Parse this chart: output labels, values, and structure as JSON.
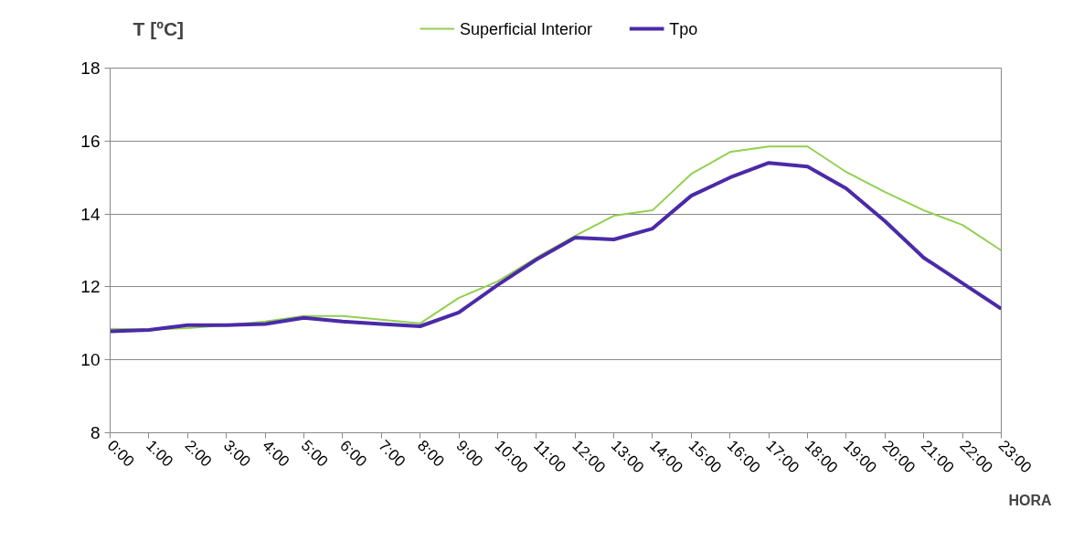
{
  "chart_data": {
    "type": "line",
    "title": "T [ºC]",
    "xlabel": "HORA",
    "x": [
      0,
      1,
      2,
      3,
      4,
      5,
      6,
      7,
      8,
      9,
      10,
      11,
      12,
      13,
      14,
      15,
      16,
      17,
      18,
      19,
      20,
      21,
      22,
      23
    ],
    "series": [
      {
        "name": "Superficial Interior",
        "color": "#92d050",
        "values": [
          10.85,
          10.83,
          10.87,
          10.95,
          11.05,
          11.2,
          11.2,
          11.1,
          11.0,
          11.7,
          12.15,
          12.8,
          13.4,
          13.95,
          14.1,
          15.1,
          15.7,
          15.85,
          15.85,
          15.15,
          14.6,
          14.1,
          13.7,
          13.0
        ]
      },
      {
        "name": "Tpo",
        "color": "#4b2aa8",
        "values": [
          10.78,
          10.82,
          10.95,
          10.95,
          10.98,
          11.15,
          11.05,
          10.98,
          10.92,
          11.3,
          12.05,
          12.75,
          13.35,
          13.3,
          13.6,
          14.5,
          15.0,
          15.4,
          15.3,
          14.7,
          13.8,
          12.8,
          12.1,
          11.4
        ]
      }
    ],
    "xlim": [
      0,
      23
    ],
    "xticks": [
      {
        "value": 0,
        "label": "0:00"
      },
      {
        "value": 1,
        "label": "1:00"
      },
      {
        "value": 2,
        "label": "2:00"
      },
      {
        "value": 3,
        "label": "3:00"
      },
      {
        "value": 4,
        "label": "4:00"
      },
      {
        "value": 5,
        "label": "5:00"
      },
      {
        "value": 6,
        "label": "6:00"
      },
      {
        "value": 7,
        "label": "7:00"
      },
      {
        "value": 8,
        "label": "8:00"
      },
      {
        "value": 9,
        "label": "9:00"
      },
      {
        "value": 10,
        "label": "10:00"
      },
      {
        "value": 11,
        "label": "11:00"
      },
      {
        "value": 12,
        "label": "12:00"
      },
      {
        "value": 13,
        "label": "13:00"
      },
      {
        "value": 14,
        "label": "14:00"
      },
      {
        "value": 15,
        "label": "15:00"
      },
      {
        "value": 16,
        "label": "16:00"
      },
      {
        "value": 17,
        "label": "17:00"
      },
      {
        "value": 18,
        "label": "18:00"
      },
      {
        "value": 19,
        "label": "19:00"
      },
      {
        "value": 20,
        "label": "20:00"
      },
      {
        "value": 21,
        "label": "21:00"
      },
      {
        "value": 22,
        "label": "22:00"
      },
      {
        "value": 23,
        "label": "23:00"
      }
    ],
    "ylim": [
      8,
      18
    ],
    "yticks": [
      8,
      10,
      12,
      14,
      16,
      18
    ],
    "grid": "y",
    "legend": "top",
    "marker": "none",
    "line_style": "solid"
  }
}
